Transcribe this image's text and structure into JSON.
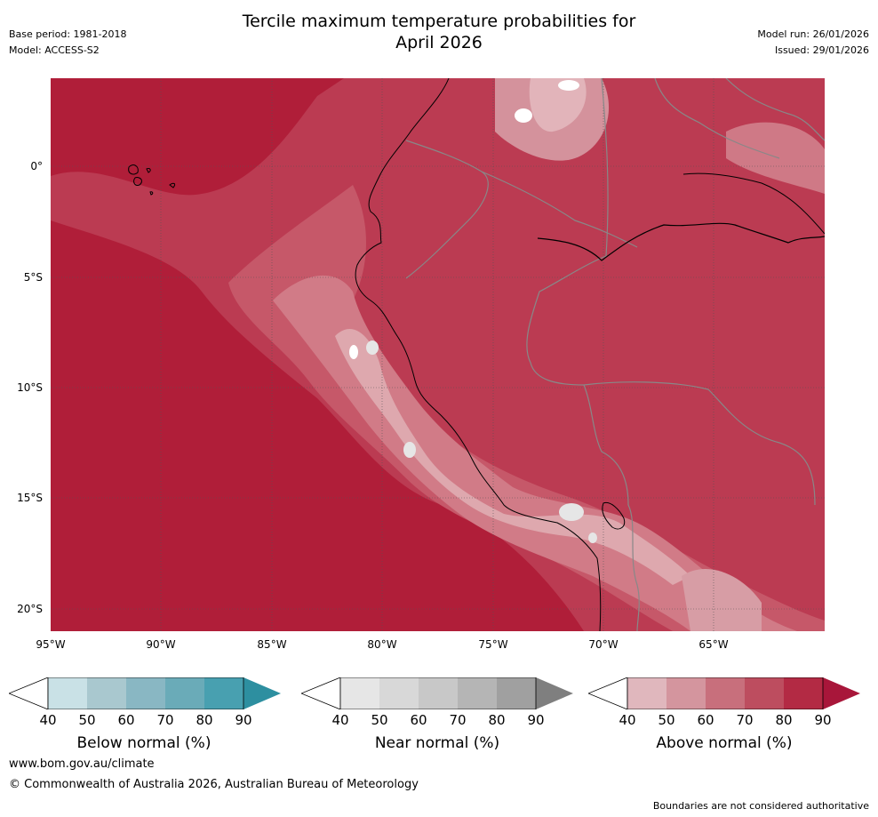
{
  "header": {
    "base_period": "Base period: 1981-2018",
    "model": "Model: ACCESS-S2",
    "title_line1": "Tercile maximum temperature probabilities for",
    "title_line2": "April 2026",
    "model_run": "Model run: 26/01/2026",
    "issued": "Issued: 29/01/2026"
  },
  "axes": {
    "lat_labels": [
      "0°",
      "5°S",
      "10°S",
      "15°S",
      "20°S"
    ],
    "lon_labels": [
      "95°W",
      "90°W",
      "85°W",
      "80°W",
      "75°W",
      "70°W",
      "65°W"
    ]
  },
  "colorbars": [
    {
      "label": "Below normal (%)",
      "ticks": [
        "40",
        "50",
        "60",
        "70",
        "80",
        "90"
      ],
      "colors": [
        "#c9e1e6",
        "#a9c8cf",
        "#89b7c3",
        "#6aabb8",
        "#48a0b0",
        "#2d8fa0"
      ]
    },
    {
      "label": "Near normal (%)",
      "ticks": [
        "40",
        "50",
        "60",
        "70",
        "80",
        "90"
      ],
      "colors": [
        "#e6e6e6",
        "#d8d8d8",
        "#c8c8c8",
        "#b5b5b5",
        "#a0a0a0",
        "#7f7f7f"
      ]
    },
    {
      "label": "Above normal (%)",
      "ticks": [
        "40",
        "50",
        "60",
        "70",
        "80",
        "90"
      ],
      "colors": [
        "#e0b7bd",
        "#d4959e",
        "#c86f7c",
        "#bd4d5f",
        "#b32a44",
        "#a8163a"
      ]
    }
  ],
  "footer": {
    "url": "www.bom.gov.au/climate",
    "copyright": "© Commonwealth of Australia 2026, Australian Bureau of Meteorology",
    "disclaimer": "Boundaries are not considered authoritative"
  }
}
